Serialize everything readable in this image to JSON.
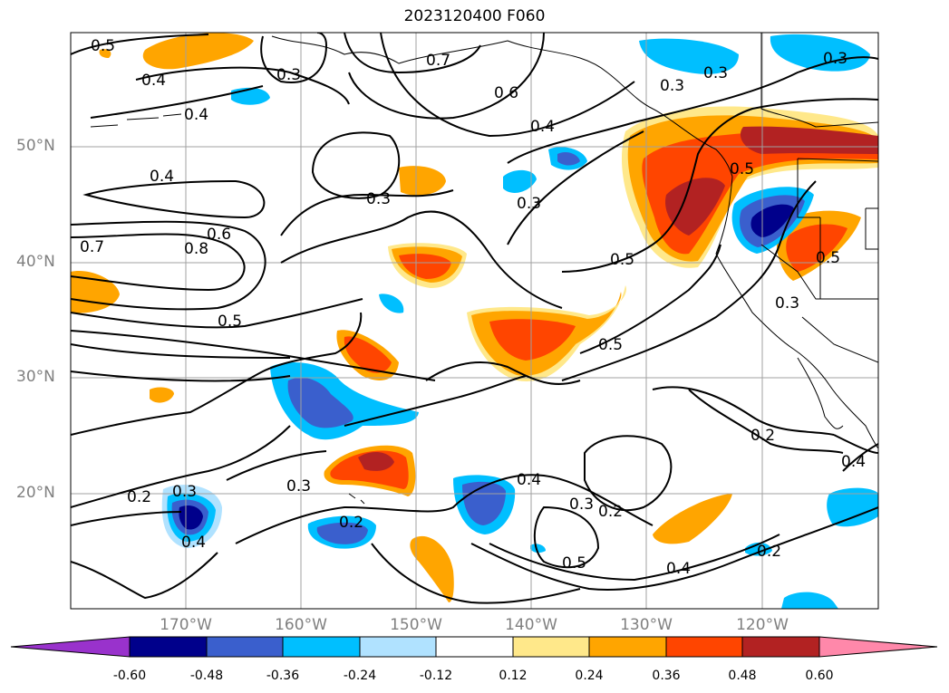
{
  "title": "2023120400 F060",
  "latitude_labels": [
    "50°N",
    "40°N",
    "30°N",
    "20°N"
  ],
  "longitude_labels": [
    "170°W",
    "160°W",
    "150°W",
    "140°W",
    "130°W",
    "120°W"
  ],
  "colorbar": {
    "ticks": [
      "-0.60",
      "-0.48",
      "-0.36",
      "-0.24",
      "-0.12",
      "0.12",
      "0.24",
      "0.36",
      "0.48",
      "0.60"
    ],
    "colors": [
      "#9932cc",
      "#00008b",
      "#3a5fcd",
      "#00bfff",
      "#b0e2ff",
      "#ffffff",
      "#ffe88a",
      "#ffa500",
      "#ff4500",
      "#b22222",
      "#ff88aa"
    ]
  },
  "contour_labels": [
    "0.5",
    "0.4",
    "0.3",
    "0.7",
    "0.6",
    "0.3",
    "0.3",
    "0.4",
    "0.4",
    "0.3",
    "0.3",
    "0.5",
    "0.3",
    "0.7",
    "0.8",
    "0.6",
    "0.4",
    "0.5",
    "0.5",
    "0.5",
    "0.3",
    "0.3",
    "0.2",
    "0.3",
    "0.4",
    "0.2",
    "0.4",
    "0.3",
    "0.2",
    "0.5",
    "0.4",
    "0.2",
    "0.2",
    "0.4"
  ]
}
